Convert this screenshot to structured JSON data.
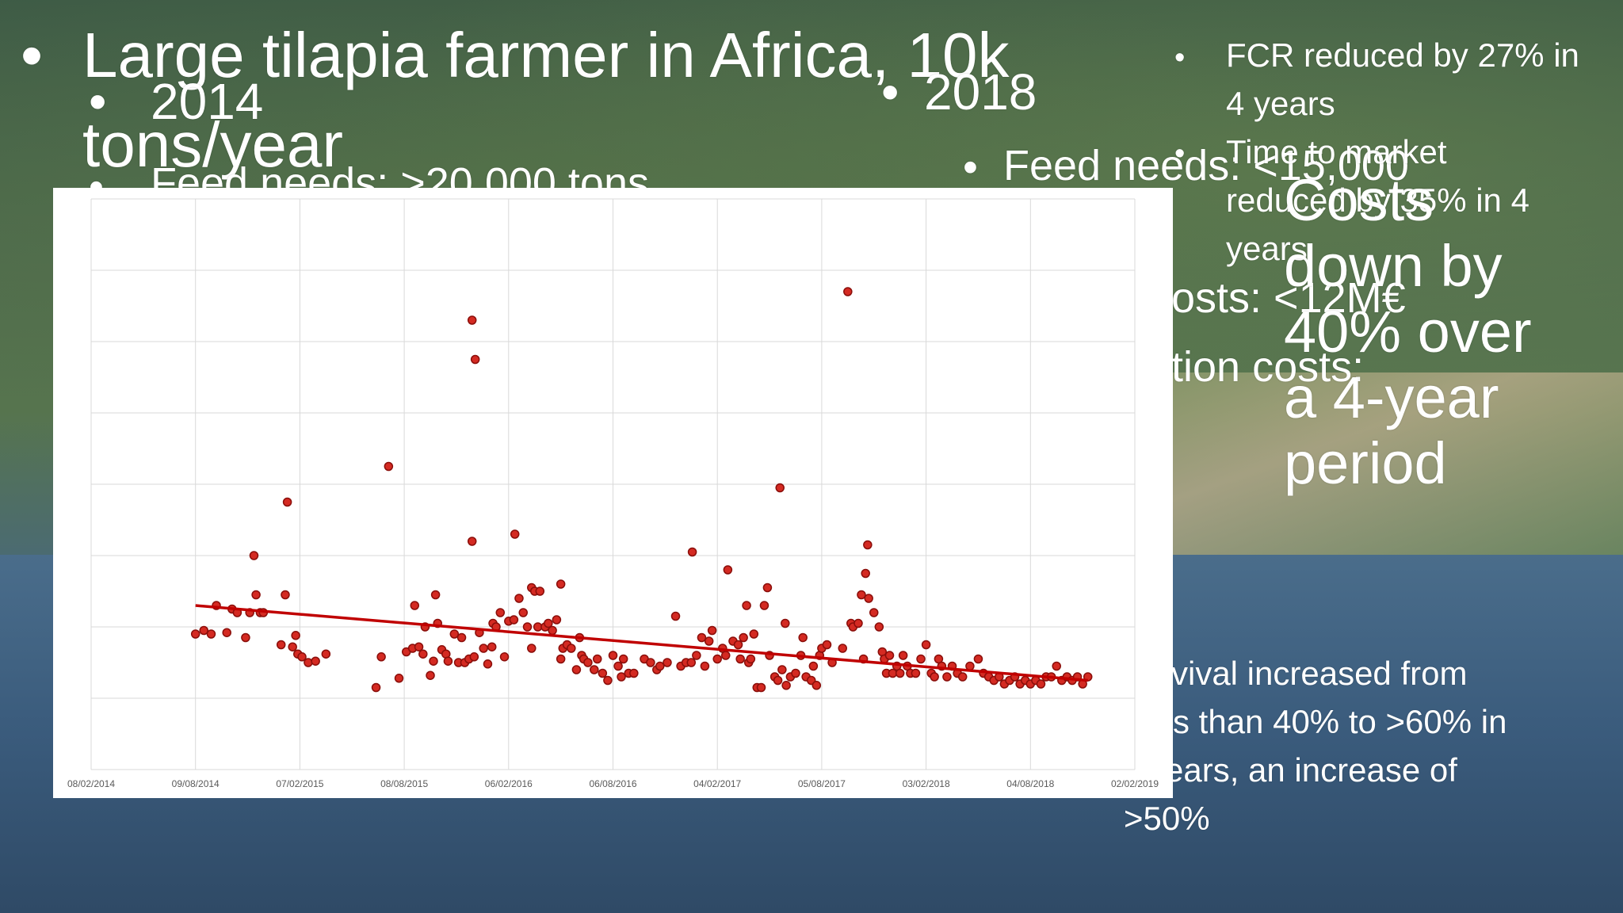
{
  "slide": {
    "title_line1": "Large tilapia farmer in Africa, 10k",
    "title_line2": "tons/year",
    "col2014": {
      "year": "2014",
      "feed": "Feed needs: >20,000 tons"
    },
    "col2018": {
      "year": "2018",
      "feed": "Feed needs: <15,000",
      "costs1": "osts: <12M€",
      "costs2": "tion costs:"
    },
    "right_bullets": [
      {
        "l1": "FCR reduced by 27% in",
        "l2": "4 years"
      },
      {
        "l1": "Time to market",
        "l2": "reduced by 35% in 4",
        "l3": "years"
      }
    ],
    "costs_big": [
      "Costs",
      "down by",
      "40% over",
      "a 4-year",
      "period"
    ],
    "survival": [
      "rvival increased from",
      "s than 40% to >60% in",
      "ears, an increase of",
      ">50%"
    ]
  },
  "chart_data": {
    "type": "scatter",
    "title": "",
    "xlabel": "",
    "ylabel": "",
    "x_tick_labels": [
      "08/02/2014",
      "09/08/2014",
      "07/02/2015",
      "08/08/2015",
      "06/02/2016",
      "06/08/2016",
      "04/02/2017",
      "05/08/2017",
      "03/02/2018",
      "04/08/2018",
      "02/02/2019"
    ],
    "grid": true,
    "marker_color": "#d42a22",
    "trend_color": "#c00000",
    "y_scale": [
      0,
      8
    ],
    "trendline": {
      "x_start": 1.0,
      "y_start": 2.3,
      "x_end": 9.55,
      "y_end": 1.25
    },
    "points": [
      [
        1.0,
        1.9
      ],
      [
        1.08,
        1.95
      ],
      [
        1.15,
        1.9
      ],
      [
        1.2,
        2.3
      ],
      [
        1.3,
        1.92
      ],
      [
        1.35,
        2.25
      ],
      [
        1.4,
        2.2
      ],
      [
        1.48,
        1.85
      ],
      [
        1.52,
        2.2
      ],
      [
        1.56,
        3.0
      ],
      [
        1.58,
        2.45
      ],
      [
        1.62,
        2.2
      ],
      [
        1.65,
        2.2
      ],
      [
        1.82,
        1.75
      ],
      [
        1.86,
        2.45
      ],
      [
        1.88,
        3.75
      ],
      [
        1.93,
        1.72
      ],
      [
        1.96,
        1.88
      ],
      [
        1.98,
        1.62
      ],
      [
        2.02,
        1.58
      ],
      [
        2.08,
        1.5
      ],
      [
        2.15,
        1.52
      ],
      [
        2.25,
        1.62
      ],
      [
        2.73,
        1.15
      ],
      [
        2.78,
        1.58
      ],
      [
        2.85,
        4.25
      ],
      [
        2.95,
        1.28
      ],
      [
        3.02,
        1.65
      ],
      [
        3.08,
        1.7
      ],
      [
        3.1,
        2.3
      ],
      [
        3.14,
        1.72
      ],
      [
        3.18,
        1.62
      ],
      [
        3.2,
        2.0
      ],
      [
        3.25,
        1.32
      ],
      [
        3.28,
        1.52
      ],
      [
        3.3,
        2.45
      ],
      [
        3.32,
        2.05
      ],
      [
        3.36,
        1.68
      ],
      [
        3.4,
        1.62
      ],
      [
        3.42,
        1.52
      ],
      [
        3.48,
        1.9
      ],
      [
        3.52,
        1.5
      ],
      [
        3.55,
        1.85
      ],
      [
        3.58,
        1.5
      ],
      [
        3.62,
        1.55
      ],
      [
        3.65,
        3.2
      ],
      [
        3.65,
        6.3
      ],
      [
        3.67,
        1.58
      ],
      [
        3.68,
        5.75
      ],
      [
        3.72,
        1.92
      ],
      [
        3.76,
        1.7
      ],
      [
        3.8,
        1.48
      ],
      [
        3.84,
        1.72
      ],
      [
        3.85,
        2.05
      ],
      [
        3.88,
        2.0
      ],
      [
        3.92,
        2.2
      ],
      [
        3.96,
        1.58
      ],
      [
        4.0,
        2.08
      ],
      [
        4.05,
        2.1
      ],
      [
        4.06,
        3.3
      ],
      [
        4.1,
        2.4
      ],
      [
        4.14,
        2.2
      ],
      [
        4.18,
        2.0
      ],
      [
        4.22,
        1.7
      ],
      [
        4.22,
        2.55
      ],
      [
        4.25,
        2.5
      ],
      [
        4.28,
        2.0
      ],
      [
        4.3,
        2.5
      ],
      [
        4.35,
        2.0
      ],
      [
        4.38,
        2.05
      ],
      [
        4.42,
        1.95
      ],
      [
        4.46,
        2.1
      ],
      [
        4.5,
        1.55
      ],
      [
        4.5,
        2.6
      ],
      [
        4.52,
        1.7
      ],
      [
        4.56,
        1.75
      ],
      [
        4.6,
        1.7
      ],
      [
        4.65,
        1.4
      ],
      [
        4.68,
        1.85
      ],
      [
        4.7,
        1.6
      ],
      [
        4.72,
        1.55
      ],
      [
        4.76,
        1.5
      ],
      [
        4.82,
        1.4
      ],
      [
        4.85,
        1.55
      ],
      [
        4.9,
        1.35
      ],
      [
        4.95,
        1.25
      ],
      [
        5.0,
        1.6
      ],
      [
        5.05,
        1.45
      ],
      [
        5.08,
        1.3
      ],
      [
        5.1,
        1.55
      ],
      [
        5.15,
        1.35
      ],
      [
        5.2,
        1.35
      ],
      [
        5.3,
        1.55
      ],
      [
        5.36,
        1.5
      ],
      [
        5.42,
        1.4
      ],
      [
        5.45,
        1.45
      ],
      [
        5.52,
        1.5
      ],
      [
        5.6,
        2.15
      ],
      [
        5.65,
        1.45
      ],
      [
        5.7,
        1.5
      ],
      [
        5.75,
        1.5
      ],
      [
        5.76,
        3.05
      ],
      [
        5.8,
        1.6
      ],
      [
        5.85,
        1.85
      ],
      [
        5.88,
        1.45
      ],
      [
        5.92,
        1.8
      ],
      [
        5.95,
        1.95
      ],
      [
        6.0,
        1.55
      ],
      [
        6.05,
        1.7
      ],
      [
        6.08,
        1.6
      ],
      [
        6.1,
        2.8
      ],
      [
        6.15,
        1.8
      ],
      [
        6.2,
        1.75
      ],
      [
        6.22,
        1.55
      ],
      [
        6.25,
        1.85
      ],
      [
        6.28,
        2.3
      ],
      [
        6.3,
        1.5
      ],
      [
        6.32,
        1.55
      ],
      [
        6.35,
        1.9
      ],
      [
        6.38,
        1.15
      ],
      [
        6.42,
        1.15
      ],
      [
        6.45,
        2.3
      ],
      [
        6.48,
        2.55
      ],
      [
        6.5,
        1.6
      ],
      [
        6.55,
        1.3
      ],
      [
        6.58,
        1.25
      ],
      [
        6.6,
        3.95
      ],
      [
        6.62,
        1.4
      ],
      [
        6.65,
        2.05
      ],
      [
        6.66,
        1.18
      ],
      [
        6.7,
        1.3
      ],
      [
        6.75,
        1.35
      ],
      [
        6.8,
        1.6
      ],
      [
        6.82,
        1.85
      ],
      [
        6.85,
        1.3
      ],
      [
        6.9,
        1.25
      ],
      [
        6.92,
        1.45
      ],
      [
        6.95,
        1.18
      ],
      [
        6.98,
        1.6
      ],
      [
        7.0,
        1.7
      ],
      [
        7.05,
        1.75
      ],
      [
        7.1,
        1.5
      ],
      [
        7.2,
        1.7
      ],
      [
        7.25,
        6.7
      ],
      [
        7.28,
        2.05
      ],
      [
        7.3,
        2.0
      ],
      [
        7.35,
        2.05
      ],
      [
        7.38,
        2.45
      ],
      [
        7.4,
        1.55
      ],
      [
        7.42,
        2.75
      ],
      [
        7.44,
        3.15
      ],
      [
        7.45,
        2.4
      ],
      [
        7.5,
        2.2
      ],
      [
        7.55,
        2.0
      ],
      [
        7.58,
        1.65
      ],
      [
        7.6,
        1.55
      ],
      [
        7.62,
        1.35
      ],
      [
        7.65,
        1.6
      ],
      [
        7.68,
        1.35
      ],
      [
        7.72,
        1.45
      ],
      [
        7.75,
        1.35
      ],
      [
        7.78,
        1.6
      ],
      [
        7.82,
        1.45
      ],
      [
        7.85,
        1.35
      ],
      [
        7.9,
        1.35
      ],
      [
        7.95,
        1.55
      ],
      [
        8.0,
        1.75
      ],
      [
        8.05,
        1.35
      ],
      [
        8.08,
        1.3
      ],
      [
        8.12,
        1.55
      ],
      [
        8.15,
        1.45
      ],
      [
        8.2,
        1.3
      ],
      [
        8.25,
        1.45
      ],
      [
        8.3,
        1.35
      ],
      [
        8.35,
        1.3
      ],
      [
        8.42,
        1.45
      ],
      [
        8.5,
        1.55
      ],
      [
        8.55,
        1.35
      ],
      [
        8.6,
        1.3
      ],
      [
        8.65,
        1.25
      ],
      [
        8.7,
        1.3
      ],
      [
        8.75,
        1.2
      ],
      [
        8.8,
        1.25
      ],
      [
        8.85,
        1.3
      ],
      [
        8.9,
        1.2
      ],
      [
        8.95,
        1.25
      ],
      [
        9.0,
        1.2
      ],
      [
        9.05,
        1.25
      ],
      [
        9.1,
        1.2
      ],
      [
        9.15,
        1.3
      ],
      [
        9.2,
        1.3
      ],
      [
        9.25,
        1.45
      ],
      [
        9.3,
        1.25
      ],
      [
        9.35,
        1.3
      ],
      [
        9.4,
        1.25
      ],
      [
        9.45,
        1.3
      ],
      [
        9.5,
        1.2
      ],
      [
        9.55,
        1.3
      ]
    ]
  }
}
